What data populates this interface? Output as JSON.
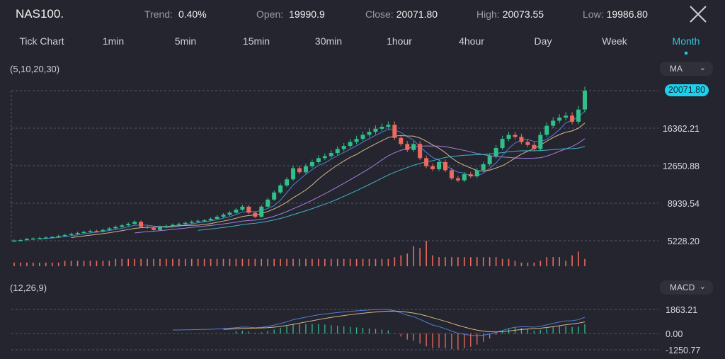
{
  "header": {
    "symbol": "NAS100.",
    "stats": [
      {
        "label": "Trend:",
        "value": "0.40%"
      },
      {
        "label": "Open:",
        "value": "19990.9"
      },
      {
        "label": "Close:",
        "value": "20071.80"
      },
      {
        "label": "High:",
        "value": "20073.55"
      },
      {
        "label": "Low:",
        "value": "19986.80"
      }
    ],
    "close_icon": "close-x-icon"
  },
  "timeframes": [
    "Tick Chart",
    "1min",
    "5min",
    "15min",
    "30min",
    "1hour",
    "4hour",
    "Day",
    "Week",
    "Month"
  ],
  "active_timeframe": "Month",
  "main_panel": {
    "params": "(5,10,20,30)",
    "indicator": "MA",
    "last_price": "20071.80"
  },
  "macd_panel": {
    "params": "(12,26,9)",
    "indicator": "MACD"
  },
  "colors": {
    "up": "#2fbf8a",
    "down": "#ee6a5f",
    "accent": "#19d3ee",
    "ma5": "#4d7fd6",
    "ma10": "#d8b88a",
    "ma20": "#a47fe0",
    "ma30": "#3fb5c6"
  },
  "chart_data": [
    {
      "type": "candlestick",
      "title": "",
      "price_ticks": [
        "20071.80",
        "16362.21",
        "12650.88",
        "8939.54",
        "5228.20"
      ],
      "ylim": [
        5228.2,
        20071.8
      ],
      "grid": true,
      "ma_periods": [
        5,
        10,
        20,
        30
      ],
      "closes": [
        5250,
        5300,
        5400,
        5450,
        5500,
        5550,
        5600,
        5700,
        5800,
        5900,
        6000,
        6100,
        6200,
        6150,
        6300,
        6450,
        6600,
        6750,
        6900,
        7100,
        6600,
        6500,
        6300,
        6600,
        6700,
        6800,
        6900,
        7000,
        7100,
        7200,
        7250,
        7400,
        7600,
        7800,
        8000,
        8300,
        8600,
        8000,
        7600,
        8600,
        9300,
        10000,
        10700,
        11300,
        12400,
        12000,
        12600,
        13000,
        13400,
        13600,
        13900,
        14300,
        14600,
        15000,
        15300,
        15700,
        16000,
        16300,
        16500,
        16700,
        15400,
        14800,
        14200,
        14800,
        13400,
        12600,
        12300,
        13000,
        12200,
        11400,
        11200,
        11800,
        11600,
        12200,
        12800,
        13600,
        14400,
        15300,
        15700,
        15500,
        15000,
        14700,
        14300,
        15700,
        16600,
        17100,
        17400,
        17600,
        17000,
        18200,
        20071.8
      ],
      "volumes": [
        2,
        2,
        2,
        2,
        2,
        2,
        2,
        2,
        3,
        3,
        3,
        3,
        3,
        3,
        3,
        3,
        4,
        4,
        4,
        4,
        4,
        4,
        4,
        4,
        4,
        4,
        4,
        4,
        4,
        4,
        4,
        4,
        4,
        4,
        4,
        4,
        4,
        4,
        4,
        4,
        4,
        4,
        4,
        4,
        4,
        4,
        4,
        4,
        4,
        4,
        4,
        4,
        4,
        4,
        4,
        4,
        4,
        4,
        4,
        4,
        5,
        6,
        7,
        11,
        10,
        14,
        6,
        5,
        5,
        5,
        5,
        5,
        5,
        5,
        5,
        5,
        5,
        4,
        4,
        3,
        2,
        2,
        2,
        3,
        5,
        5,
        5,
        3,
        6,
        8,
        4
      ]
    },
    {
      "type": "macd",
      "params": [
        12,
        26,
        9
      ],
      "ticks": [
        "1863.21",
        "0.00",
        "-1250.77"
      ],
      "ylim": [
        -1250.77,
        1863.21
      ]
    }
  ]
}
